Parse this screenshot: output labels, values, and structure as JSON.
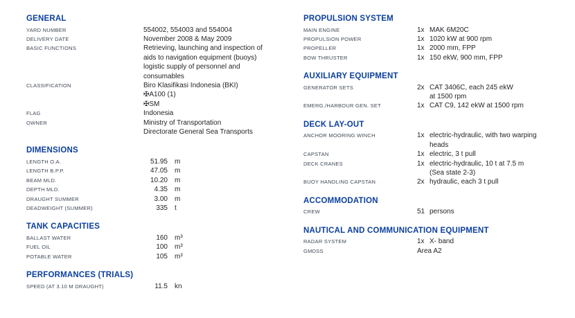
{
  "colors": {
    "background": "#ffffff",
    "heading": "#0b3f9e",
    "label": "#3f4754",
    "value": "#232428"
  },
  "columns": {
    "left": [
      {
        "title": "GENERAL",
        "layout": "text",
        "rows": [
          {
            "label": "YARD NUMBER",
            "lines": [
              "554002, 554003 and 554004"
            ]
          },
          {
            "label": "DELIVERY DATE",
            "lines": [
              "November 2008 & May 2009"
            ]
          },
          {
            "label": "BASIC FUNCTIONS",
            "lines": [
              "Retrieving, launching and inspection of",
              "aids to navigation equipment (buoys)",
              "logistic supply of personnel and",
              "consumables"
            ]
          },
          {
            "label": "CLASSIFICATION",
            "lines": [
              "Biro Klasifikasi Indonesia (BKI)",
              "✠A100 (1)",
              "✠SM"
            ]
          },
          {
            "label": "FLAG",
            "lines": [
              "Indonesia"
            ]
          },
          {
            "label": "OWNER",
            "lines": [
              "Ministry of Transportation",
              "Directorate General Sea Transports"
            ]
          }
        ]
      },
      {
        "title": "DIMENSIONS",
        "layout": "measure",
        "rows": [
          {
            "label": "LENGTH O.A.",
            "value": "51.95",
            "unit": "m"
          },
          {
            "label": "LENGTH B.P.P.",
            "value": "47.05",
            "unit": "m"
          },
          {
            "label": "BEAM MLD.",
            "value": "10.20",
            "unit": "m"
          },
          {
            "label": "DEPTH MLD.",
            "value": "4.35",
            "unit": "m"
          },
          {
            "label": "DRAUGHT SUMMER",
            "value": "3.00",
            "unit": "m"
          },
          {
            "label": "DEADWEIGHT (SUMMER)",
            "value": "335",
            "unit": "t"
          }
        ]
      },
      {
        "title": "TANK CAPACITIES",
        "layout": "measure",
        "rows": [
          {
            "label": "BALLAST WATER",
            "value": "160",
            "unit": "m³"
          },
          {
            "label": "FUEL OIL",
            "value": "100",
            "unit": "m³"
          },
          {
            "label": "POTABLE WATER",
            "value": "105",
            "unit": "m³"
          }
        ]
      },
      {
        "title": "PERFORMANCES (TRIALS)",
        "layout": "measure",
        "rows": [
          {
            "label": "SPEED (AT 3.10 M DRAUGHT)",
            "value": "11.5",
            "unit": "kn"
          }
        ]
      }
    ],
    "right": [
      {
        "title": "PROPULSION SYSTEM",
        "layout": "qty",
        "rows": [
          {
            "label": "MAIN ENGINE",
            "qty": "1x",
            "lines": [
              "MAK 6M20C"
            ]
          },
          {
            "label": "PROPULSION POWER",
            "qty": "1x",
            "lines": [
              "1020 kW at 900 rpm"
            ]
          },
          {
            "label": "PROPELLER",
            "qty": "1x",
            "lines": [
              "2000 mm, FPP"
            ]
          },
          {
            "label": "BOW THRUSTER",
            "qty": "1x",
            "lines": [
              "150 ekW, 900 mm, FPP"
            ]
          }
        ]
      },
      {
        "title": "AUXILIARY EQUIPMENT",
        "layout": "qty",
        "rows": [
          {
            "label": "GENERATOR SETS",
            "qty": "2x",
            "lines": [
              "CAT 3406C, each 245 ekW",
              "at 1500 rpm"
            ]
          },
          {
            "label": "EMERG./HARBOUR GEN. SET",
            "qty": "1x",
            "lines": [
              "CAT C9, 142 ekW at 1500 rpm"
            ]
          }
        ]
      },
      {
        "title": "DECK LAY-OUT",
        "layout": "qty",
        "rows": [
          {
            "label": "ANCHOR MOORING WINCH",
            "qty": "1x",
            "lines": [
              "electric-hydraulic, with two warping",
              "heads"
            ]
          },
          {
            "label": "CAPSTAN",
            "qty": "1x",
            "lines": [
              "electric, 3 t pull"
            ]
          },
          {
            "label": "DECK CRANES",
            "qty": "1x",
            "lines": [
              "electric-hydraulic, 10 t at 7.5 m",
              "(Sea state 2-3)"
            ]
          },
          {
            "label": "BUOY HANDLING CAPSTAN",
            "qty": "2x",
            "lines": [
              "hydraulic, each 3 t pull"
            ]
          }
        ]
      },
      {
        "title": "ACCOMMODATION",
        "layout": "qty",
        "rows": [
          {
            "label": "CREW",
            "qty": "51",
            "lines": [
              "persons"
            ]
          }
        ]
      },
      {
        "title": "NAUTICAL AND COMMUNICATION EQUIPMENT",
        "layout": "qty",
        "rows": [
          {
            "label": "RADAR SYSTEM",
            "qty": "1x",
            "lines": [
              "X- band"
            ]
          },
          {
            "label": "GMDSS",
            "qty": "",
            "lines": [
              "Area A2"
            ]
          }
        ]
      }
    ]
  }
}
